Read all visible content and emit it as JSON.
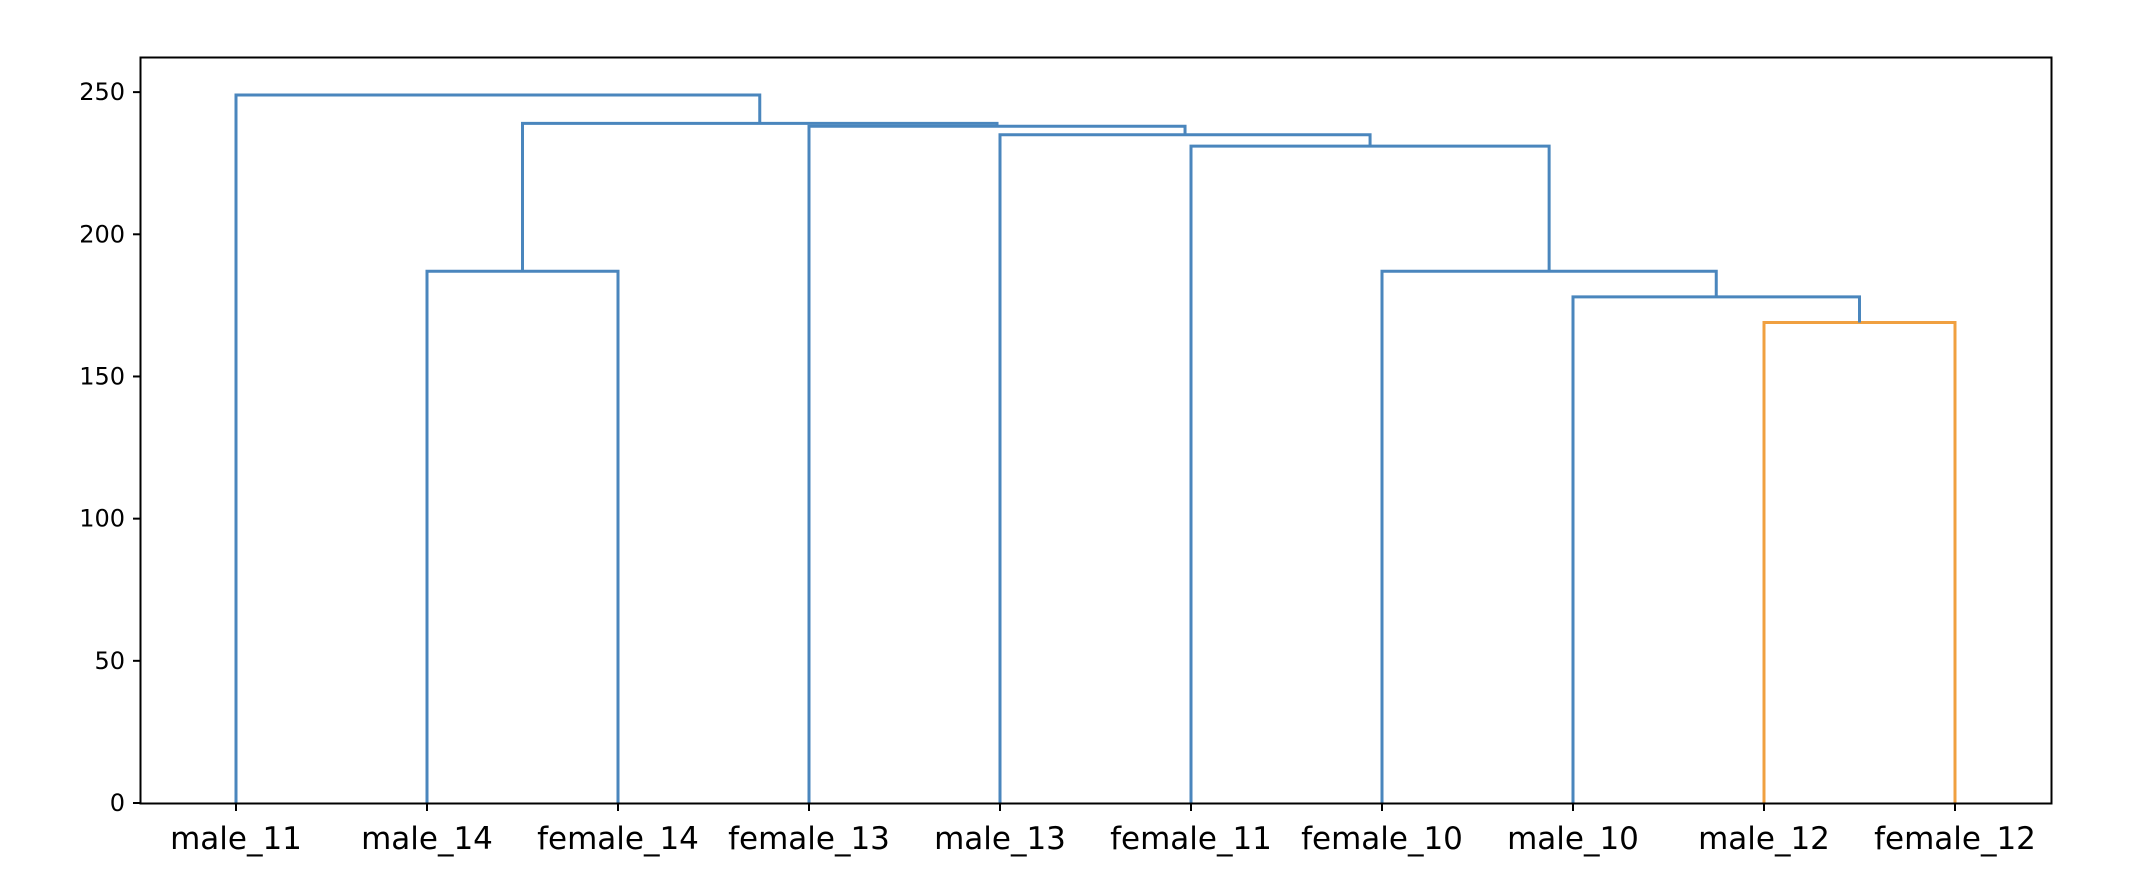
{
  "chart_data": {
    "type": "dendrogram",
    "leaves": [
      "male_11",
      "male_14",
      "female_14",
      "female_13",
      "male_13",
      "female_11",
      "female_10",
      "male_10",
      "male_12",
      "female_12"
    ],
    "y_ticks": [
      0,
      50,
      100,
      150,
      200,
      250
    ],
    "ylim": [
      0,
      262
    ],
    "merges": [
      {
        "left": "male_12",
        "right": "female_12",
        "height": 169,
        "color": "#f0a040"
      },
      {
        "left": "male_10",
        "right": "[male_12, female_12]",
        "height": 178,
        "color": "#4a86bd"
      },
      {
        "left": "female_10",
        "right": "[male_10, male_12, female_12]",
        "height": 187,
        "color": "#4a86bd"
      },
      {
        "left": "male_14",
        "right": "female_14",
        "height": 187,
        "color": "#4a86bd"
      },
      {
        "left": "female_11",
        "right": "[female_10, male_10, male_12, female_12]",
        "height": 231,
        "color": "#4a86bd"
      },
      {
        "left": "male_13",
        "right": "[female_11, female_10, male_10, male_12, female_12]",
        "height": 235,
        "color": "#4a86bd"
      },
      {
        "left": "female_13",
        "right": "[male_13, female_11, female_10, male_10, male_12, female_12]",
        "height": 238,
        "color": "#4a86bd"
      },
      {
        "left": "[male_14, female_14]",
        "right": "[female_13, male_13, female_11, female_10, male_10, male_12, female_12]",
        "height": 239,
        "color": "#4a86bd"
      },
      {
        "left": "male_11",
        "right": "[male_14, female_14, female_13, male_13, female_11, female_10, male_10, male_12, female_12]",
        "height": 249,
        "color": "#4a86bd"
      }
    ],
    "title": "",
    "xlabel": "",
    "ylabel": ""
  }
}
